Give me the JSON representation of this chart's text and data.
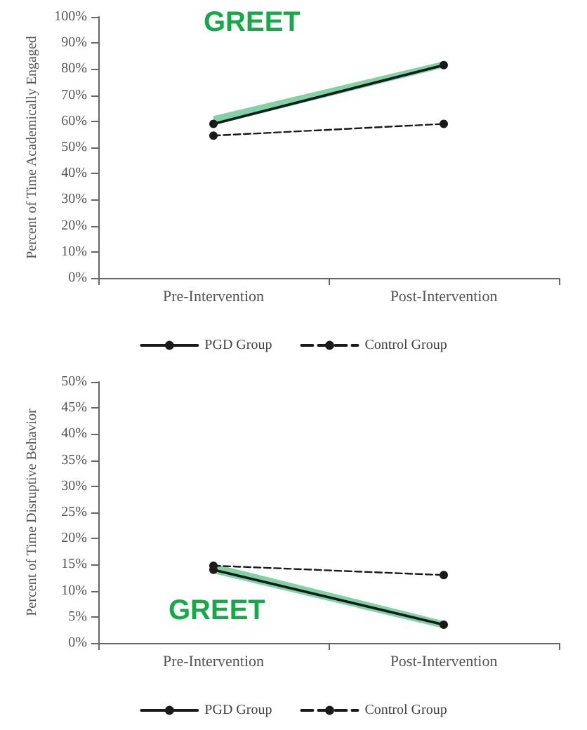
{
  "chart_data": [
    {
      "type": "line",
      "categories": [
        "Pre-Intervention",
        "Post-Intervention"
      ],
      "ylabel": "Percent of Time Academically Engaged",
      "ylim": [
        0,
        100
      ],
      "yticks": [
        {
          "value": 0,
          "label": "0%"
        },
        {
          "value": 10,
          "label": "10%"
        },
        {
          "value": 20,
          "label": "20%"
        },
        {
          "value": 30,
          "label": "30%"
        },
        {
          "value": 40,
          "label": "40%"
        },
        {
          "value": 50,
          "label": "50%"
        },
        {
          "value": 60,
          "label": "60%"
        },
        {
          "value": 70,
          "label": "70%"
        },
        {
          "value": 80,
          "label": "80%"
        },
        {
          "value": 90,
          "label": "90%"
        },
        {
          "value": 100,
          "label": "100%"
        }
      ],
      "series": [
        {
          "name": "PGD Group",
          "color": "#1a1a1a",
          "values": [
            59,
            81.5
          ],
          "lower": [
            58.5,
            80.5
          ],
          "upper": [
            62,
            83
          ],
          "line_style": "solid"
        },
        {
          "name": "Control Group",
          "color": "#1a1a1a",
          "values": [
            54.5,
            59
          ],
          "line_style": "dashed"
        }
      ],
      "annotations": [
        "GREET"
      ],
      "marker": "circle",
      "legend": "bottom",
      "grid": false
    },
    {
      "type": "line",
      "categories": [
        "Pre-Intervention",
        "Post-Intervention"
      ],
      "ylabel": "Percent of Time Disruptive Behavior",
      "ylim": [
        0,
        50
      ],
      "yticks": [
        {
          "value": 0,
          "label": "0%"
        },
        {
          "value": 5,
          "label": "5%"
        },
        {
          "value": 10,
          "label": "10%"
        },
        {
          "value": 15,
          "label": "15%"
        },
        {
          "value": 20,
          "label": "20%"
        },
        {
          "value": 25,
          "label": "25%"
        },
        {
          "value": 30,
          "label": "30%"
        },
        {
          "value": 35,
          "label": "35%"
        },
        {
          "value": 40,
          "label": "40%"
        },
        {
          "value": 45,
          "label": "45%"
        },
        {
          "value": 50,
          "label": "50%"
        }
      ],
      "series": [
        {
          "name": "PGD Group",
          "color": "#1a1a1a",
          "values": [
            14,
            3.5
          ],
          "lower": [
            13.3,
            2.8
          ],
          "upper": [
            15.2,
            4.2
          ],
          "line_style": "solid"
        },
        {
          "name": "Control Group",
          "color": "#1a1a1a",
          "values": [
            14.8,
            13
          ],
          "line_style": "dashed"
        }
      ],
      "annotations": [
        "GREET"
      ],
      "marker": "circle",
      "legend": "bottom",
      "grid": false
    }
  ]
}
